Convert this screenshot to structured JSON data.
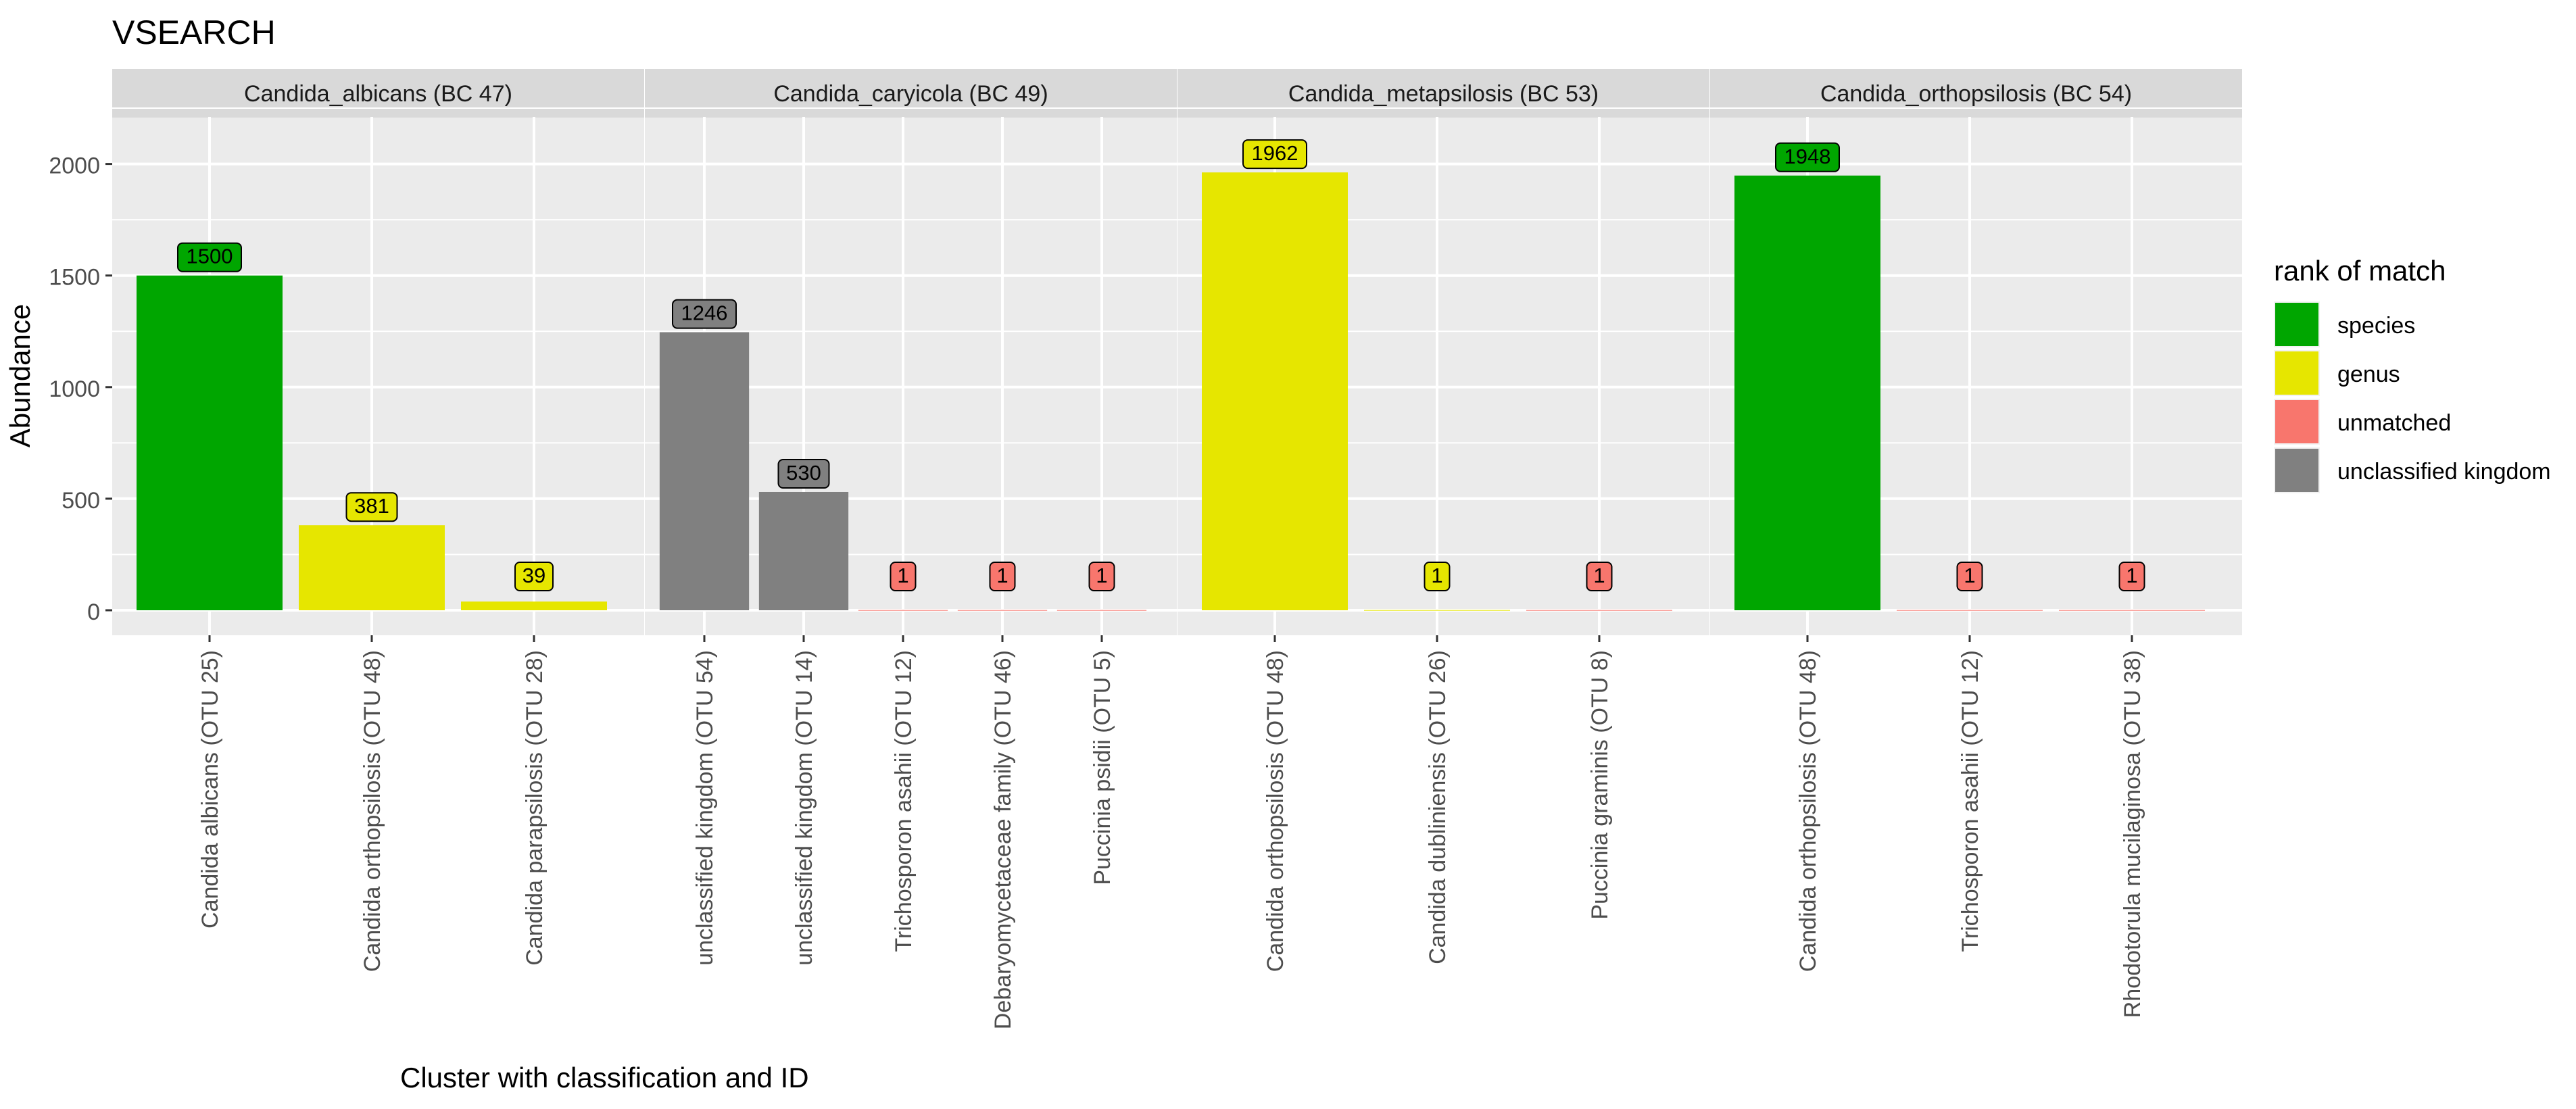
{
  "chart_data": {
    "type": "bar",
    "title": "VSEARCH",
    "xlabel": "Cluster with classification and ID",
    "ylabel": "Abundance",
    "ylim": [
      -100,
      2260
    ],
    "y_ticks": [
      0,
      500,
      1000,
      1500,
      2000
    ],
    "grid": true,
    "legend": {
      "title": "rank of match",
      "position": "right",
      "entries": [
        {
          "label": "species",
          "color": "#00a600"
        },
        {
          "label": "genus",
          "color": "#e6e600"
        },
        {
          "label": "unmatched",
          "color": "#f8766d"
        },
        {
          "label": "unclassified kingdom",
          "color": "#808080"
        }
      ]
    },
    "panels": [
      {
        "strip": "Candida_albicans (BC 47)",
        "bars": [
          {
            "category": "Candida albicans (OTU 25)",
            "value": 1500,
            "rank": "species"
          },
          {
            "category": "Candida orthopsilosis (OTU 48)",
            "value": 381,
            "rank": "genus"
          },
          {
            "category": "Candida parapsilosis (OTU 28)",
            "value": 39,
            "rank": "genus"
          }
        ]
      },
      {
        "strip": "Candida_caryicola (BC 49)",
        "bars": [
          {
            "category": "unclassified kingdom (OTU 54)",
            "value": 1246,
            "rank": "unclassified kingdom"
          },
          {
            "category": "unclassified kingdom (OTU 14)",
            "value": 530,
            "rank": "unclassified kingdom"
          },
          {
            "category": "Trichosporon asahii (OTU 12)",
            "value": 1,
            "rank": "unmatched"
          },
          {
            "category": "Debaryomycetaceae family (OTU 46)",
            "value": 1,
            "rank": "unmatched"
          },
          {
            "category": "Puccinia psidii (OTU 5)",
            "value": 1,
            "rank": "unmatched"
          }
        ]
      },
      {
        "strip": "Candida_metapsilosis (BC 53)",
        "bars": [
          {
            "category": "Candida orthopsilosis (OTU 48)",
            "value": 1962,
            "rank": "genus"
          },
          {
            "category": "Candida dubliniensis (OTU 26)",
            "value": 1,
            "rank": "genus"
          },
          {
            "category": "Puccinia graminis (OTU 8)",
            "value": 1,
            "rank": "unmatched"
          }
        ]
      },
      {
        "strip": "Candida_orthopsilosis (BC 54)",
        "bars": [
          {
            "category": "Candida orthopsilosis (OTU 48)",
            "value": 1948,
            "rank": "species"
          },
          {
            "category": "Trichosporon asahii (OTU 12)",
            "value": 1,
            "rank": "unmatched"
          },
          {
            "category": "Rhodotorula mucilaginosa (OTU 38)",
            "value": 1,
            "rank": "unmatched"
          }
        ]
      }
    ]
  }
}
